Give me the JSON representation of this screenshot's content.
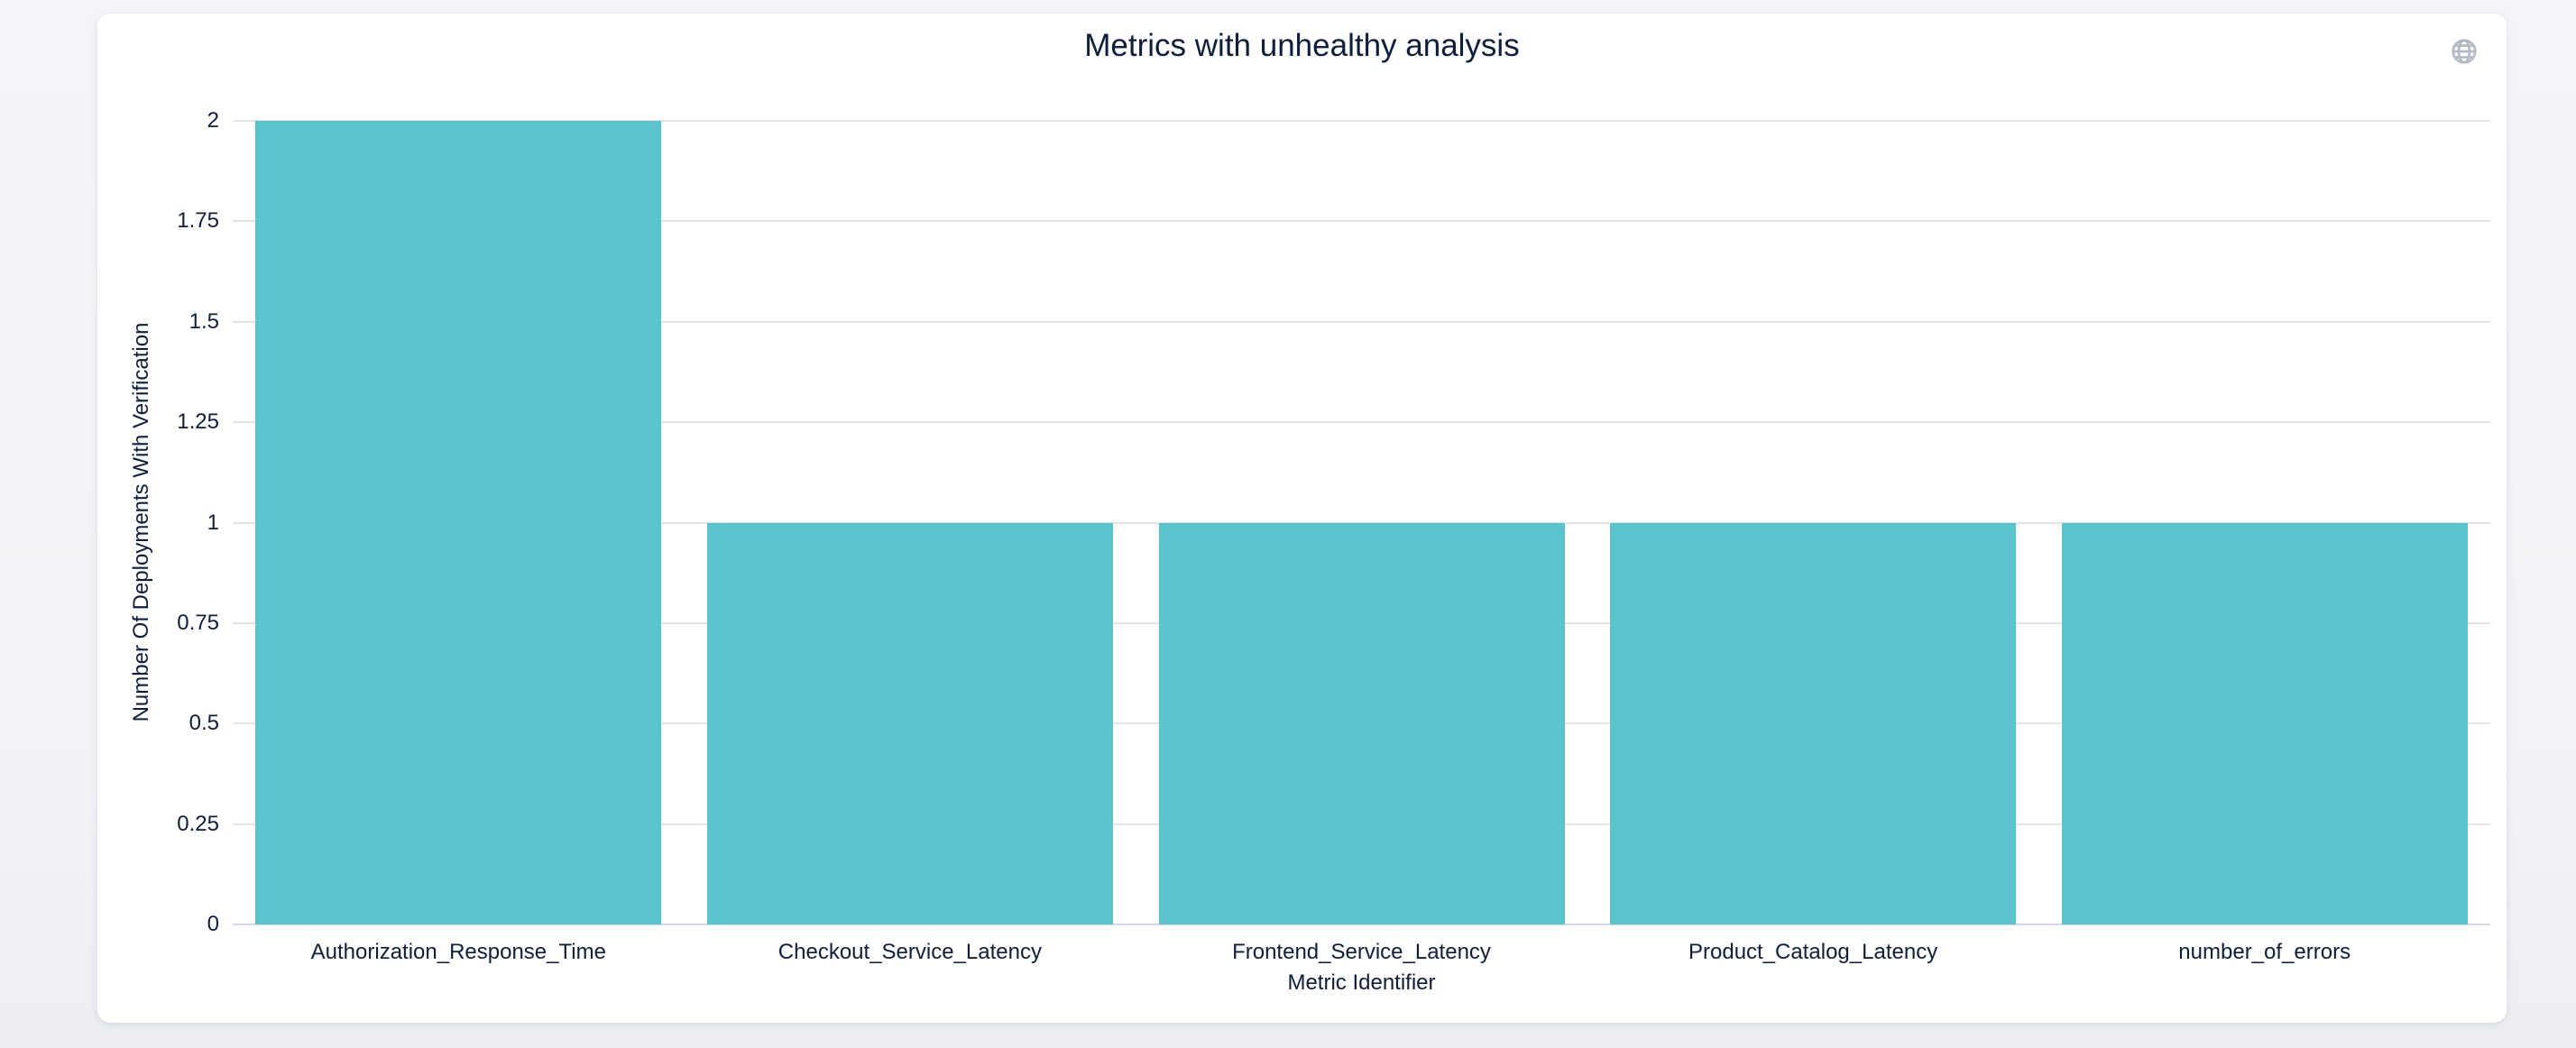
{
  "page": {
    "background_top": "#f4f5f8",
    "background_bottom": "#eceef3"
  },
  "card": {
    "background": "#ffffff"
  },
  "toolbox": {
    "globe_icon": "globe",
    "icon_color": "#b2b9c5"
  },
  "chart_data": {
    "type": "bar",
    "title": "Metrics with unhealthy analysis",
    "categories": [
      "Authorization_Response_Time",
      "Checkout_Service_Latency",
      "Frontend_Service_Latency",
      "Product_Catalog_Latency",
      "number_of_errors"
    ],
    "values": [
      2,
      1,
      1,
      1,
      1
    ],
    "xlabel": "Metric Identifier",
    "ylabel": "Number Of Deployments With Verification",
    "ylim": [
      0,
      2
    ],
    "yticks": [
      0,
      0.25,
      0.5,
      0.75,
      1,
      1.25,
      1.5,
      1.75,
      2
    ],
    "ytick_labels": [
      "0",
      "0.25",
      "0.5",
      "0.75",
      "1",
      "1.25",
      "1.5",
      "1.75",
      "2"
    ],
    "bar_color": "#5ac4ce",
    "text_color": "#0f1e3c",
    "grid_color": "#e4e4e4",
    "axis_line_color": "#d2d6e6",
    "grid": true,
    "legend": false,
    "legend_position": "none"
  }
}
